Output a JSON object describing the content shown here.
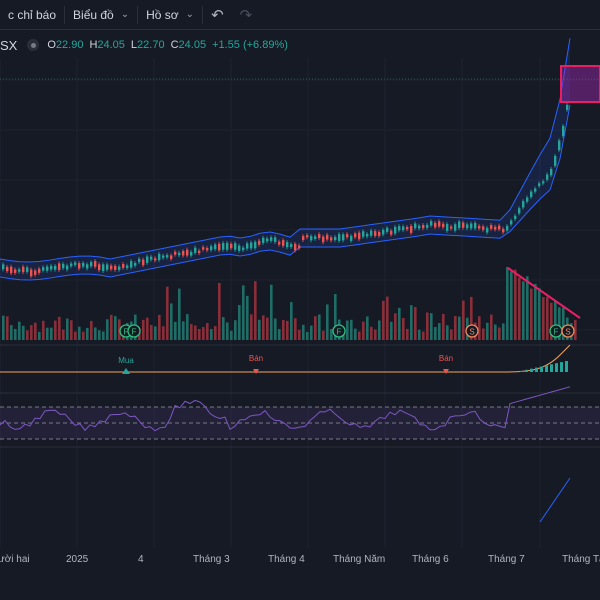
{
  "toolbar": {
    "indicators_label": "c chỉ báo",
    "chart_label": "Biểu đồ",
    "profile_label": "Hồ sơ"
  },
  "legend": {
    "symbol": "SX",
    "open_label": "O",
    "open": "22.90",
    "high_label": "H",
    "high": "24.05",
    "low_label": "L",
    "low": "22.70",
    "close_label": "C",
    "close": "24.05",
    "change": "+1.55 (+6.89%)"
  },
  "markers": {
    "buy": "Mua",
    "sell": "Bán",
    "f": "F",
    "s": "S"
  },
  "time_axis": [
    "ười hai",
    "2025",
    "4",
    "Tháng 3",
    "Tháng 4",
    "Tháng Năm",
    "Tháng 6",
    "Tháng 7",
    "Tháng Tá"
  ],
  "colors": {
    "up": "#26a69a",
    "down": "#ef5350",
    "band": "#2962ff",
    "rsi": "#7e57c2",
    "highlight": "#e91e63"
  }
}
